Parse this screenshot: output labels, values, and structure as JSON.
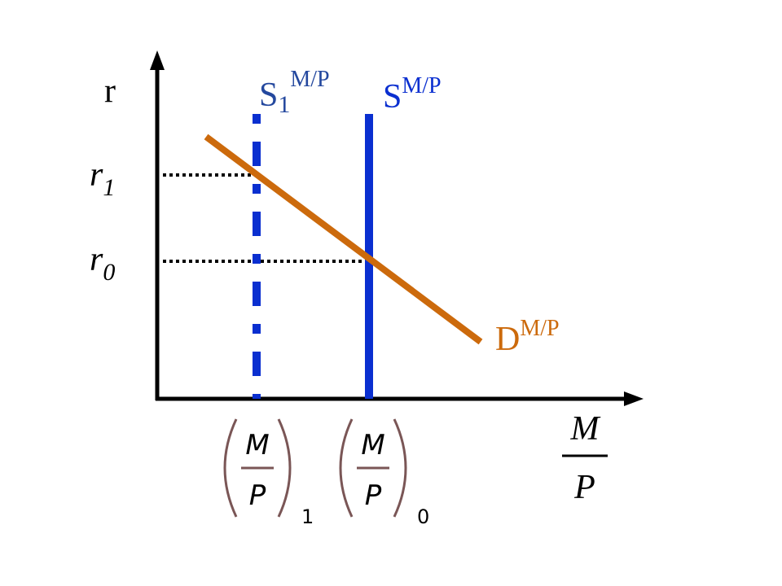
{
  "axes": {
    "y_label": "r",
    "x_label": {
      "numerator": "M",
      "denominator": "P"
    }
  },
  "levels": [
    {
      "symbol": "r",
      "subscript": "1"
    },
    {
      "symbol": "r",
      "subscript": "0"
    }
  ],
  "curves": [
    {
      "name": "S",
      "subscript": "1",
      "superscript": "M/P"
    },
    {
      "name": "S",
      "superscript": "M/P"
    },
    {
      "name": "D",
      "superscript": "M/P"
    }
  ],
  "quantities": [
    {
      "numerator": "M",
      "denominator": "P",
      "subscript": "1"
    },
    {
      "numerator": "M",
      "denominator": "P",
      "subscript": "0"
    }
  ]
}
